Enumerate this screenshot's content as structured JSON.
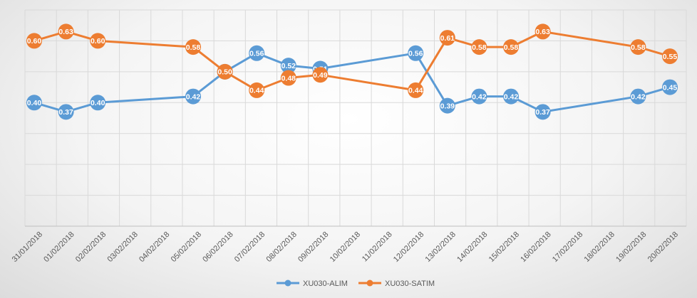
{
  "chart_data": {
    "type": "line",
    "title": "",
    "xlabel": "",
    "ylabel": "",
    "ylim": [
      0,
      0.7
    ],
    "y_ticks_visible": false,
    "grid": true,
    "legend_position": "bottom",
    "categories": [
      "31/01/2018",
      "01/02/2018",
      "02/02/2018",
      "03/02/2018",
      "04/02/2018",
      "05/02/2018",
      "06/02/2018",
      "07/02/2018",
      "08/02/2018",
      "09/02/2018",
      "10/02/2018",
      "11/02/2018",
      "12/02/2018",
      "13/02/2018",
      "14/02/2018",
      "15/02/2018",
      "16/02/2018",
      "17/02/2018",
      "18/02/2018",
      "19/02/2018",
      "20/02/2018"
    ],
    "series": [
      {
        "name": "XU030-ALIM",
        "color": "#5b9bd5",
        "values": [
          0.4,
          0.37,
          0.4,
          null,
          null,
          0.42,
          0.5,
          0.56,
          0.52,
          0.51,
          null,
          null,
          0.56,
          0.39,
          0.42,
          0.42,
          0.37,
          null,
          null,
          0.42,
          0.45
        ],
        "labels": [
          "0.40",
          "0.37",
          "0.40",
          null,
          null,
          "0.42",
          "0.50",
          "0.56",
          "0.52",
          "0.51",
          null,
          null,
          "0.56",
          "0.39",
          "0.42",
          "0.42",
          "0.37",
          null,
          null,
          "0.42",
          "0.45"
        ]
      },
      {
        "name": "XU030-SATIM",
        "color": "#ed7d31",
        "values": [
          0.6,
          0.63,
          0.6,
          null,
          null,
          0.58,
          0.5,
          0.44,
          0.48,
          0.49,
          null,
          null,
          0.44,
          0.61,
          0.58,
          0.58,
          0.63,
          null,
          null,
          0.58,
          0.55
        ],
        "labels": [
          "0.60",
          "0.63",
          "0.60",
          null,
          null,
          "0.58",
          "0.50",
          "0.44",
          "0.48",
          "0.49",
          null,
          null,
          "0.44",
          "0.61",
          "0.58",
          "0.58",
          "0.63",
          null,
          null,
          "0.58",
          "0.55"
        ]
      }
    ]
  }
}
